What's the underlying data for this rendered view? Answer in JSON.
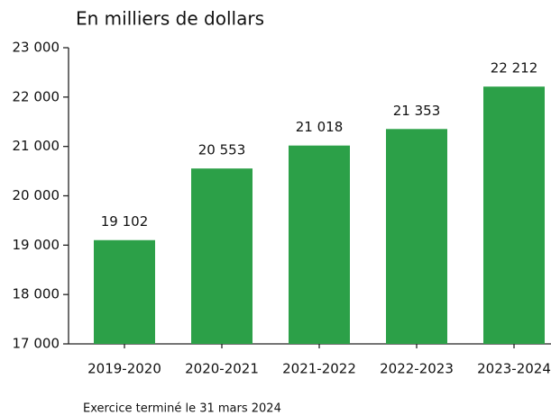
{
  "chart_data": {
    "type": "bar",
    "subtitle": "En milliers de dollars",
    "note": "Exercice terminé le 31 mars 2024",
    "categories": [
      "2019-2020",
      "2020-2021",
      "2021-2022",
      "2022-2023",
      "2023-2024"
    ],
    "values": [
      19102,
      20553,
      21018,
      21353,
      22212
    ],
    "value_labels": [
      "19 102",
      "20 553",
      "21 018",
      "21 353",
      "22 212"
    ],
    "color": "#2ca048",
    "ylim": [
      17000,
      23000
    ],
    "yticks": [
      {
        "value": 17000,
        "label": "17 000"
      },
      {
        "value": 18000,
        "label": "18 000"
      },
      {
        "value": 19000,
        "label": "19 000"
      },
      {
        "value": 20000,
        "label": "20 000"
      },
      {
        "value": 21000,
        "label": "21 000"
      },
      {
        "value": 22000,
        "label": "22 000"
      },
      {
        "value": 23000,
        "label": "23 000"
      }
    ],
    "grid": false
  }
}
